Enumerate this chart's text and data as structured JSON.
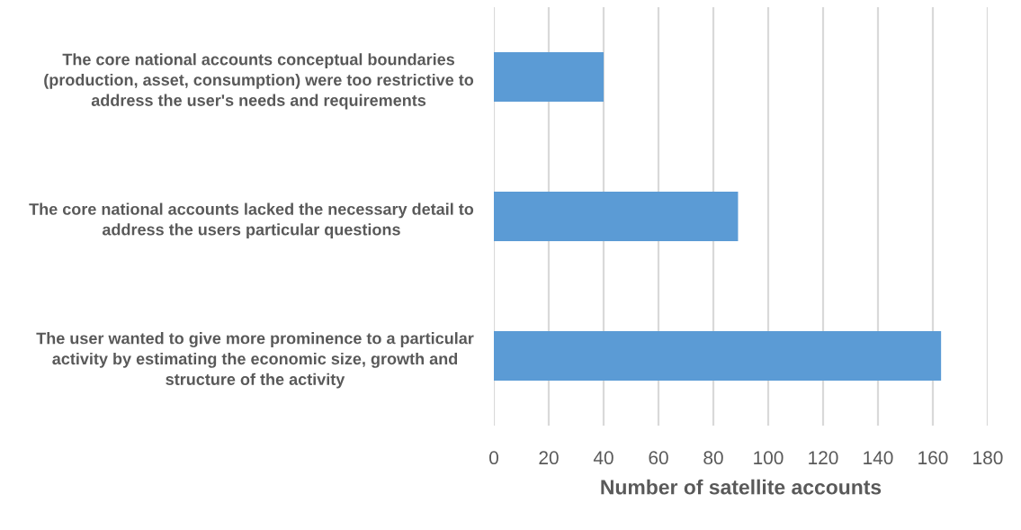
{
  "chart_data": {
    "type": "bar",
    "orientation": "horizontal",
    "categories": [
      "The core national accounts conceptual boundaries\n(production, asset, consumption) were too restrictive to\naddress the user's needs and requirements",
      "The core national accounts lacked the necessary detail to\naddress the users particular questions",
      "The user wanted to give more prominence to a particular\nactivity by estimating the economic size, growth and\nstructure of the activity"
    ],
    "values": [
      40,
      89,
      163
    ],
    "color": "#5b9bd5",
    "xlabel": "Number of satellite accounts",
    "xlim": [
      0,
      180
    ],
    "xticks": [
      0,
      20,
      40,
      60,
      80,
      100,
      120,
      140,
      160,
      180
    ],
    "grid": "x"
  }
}
